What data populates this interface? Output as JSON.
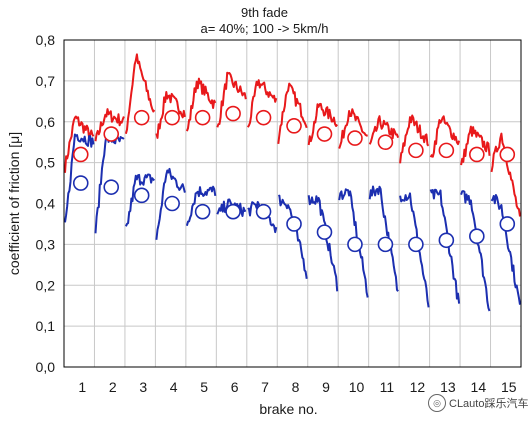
{
  "chart_data": {
    "type": "line",
    "title": "9th fade",
    "subtitle": "a= 40%; 100 -> 5km/h",
    "xlabel": "brake no.",
    "ylabel": "coefficient of friction [μ]",
    "categories": [
      "1",
      "2",
      "3",
      "4",
      "5",
      "6",
      "7",
      "8",
      "9",
      "10",
      "11",
      "12",
      "13",
      "14",
      "15"
    ],
    "ylim": [
      0,
      0.8
    ],
    "y_ticks": [
      "0,0",
      "0,1",
      "0,2",
      "0,3",
      "0,4",
      "0,5",
      "0,6",
      "0,7",
      "0,8"
    ],
    "grid": true,
    "series": [
      {
        "color": "#e8191b",
        "mean_markers": [
          0.52,
          0.57,
          0.61,
          0.61,
          0.61,
          0.62,
          0.61,
          0.59,
          0.57,
          0.56,
          0.55,
          0.53,
          0.53,
          0.52,
          0.52
        ],
        "start_values": [
          0.49,
          0.55,
          0.57,
          0.56,
          0.57,
          0.58,
          0.58,
          0.56,
          0.54,
          0.53,
          0.54,
          0.5,
          0.5,
          0.49,
          0.49
        ],
        "peak_values": [
          0.61,
          0.62,
          0.76,
          0.67,
          0.7,
          0.71,
          0.7,
          0.69,
          0.64,
          0.63,
          0.6,
          0.61,
          0.61,
          0.58,
          0.57
        ],
        "end_values": [
          0.56,
          0.6,
          0.62,
          0.62,
          0.64,
          0.66,
          0.65,
          0.6,
          0.6,
          0.56,
          0.56,
          0.55,
          0.55,
          0.53,
          0.36
        ]
      },
      {
        "color": "#1c2fb0",
        "mean_markers": [
          0.45,
          0.44,
          0.42,
          0.4,
          0.38,
          0.38,
          0.38,
          0.35,
          0.33,
          0.3,
          0.3,
          0.3,
          0.31,
          0.32,
          0.35
        ],
        "start_values": [
          0.34,
          0.33,
          0.33,
          0.31,
          0.35,
          0.37,
          0.38,
          0.41,
          0.41,
          0.42,
          0.42,
          0.42,
          0.42,
          0.42,
          0.42
        ],
        "peak_values": [
          0.57,
          0.56,
          0.46,
          0.48,
          0.43,
          0.4,
          0.4,
          0.4,
          0.41,
          0.43,
          0.44,
          0.42,
          0.42,
          0.41,
          0.39
        ],
        "end_values": [
          0.55,
          0.55,
          0.46,
          0.43,
          0.43,
          0.38,
          0.34,
          0.23,
          0.2,
          0.18,
          0.18,
          0.15,
          0.15,
          0.14,
          0.15
        ]
      }
    ]
  },
  "watermark": {
    "text": "CLauto踩乐汽车",
    "icon": "wechat-logo-icon"
  }
}
